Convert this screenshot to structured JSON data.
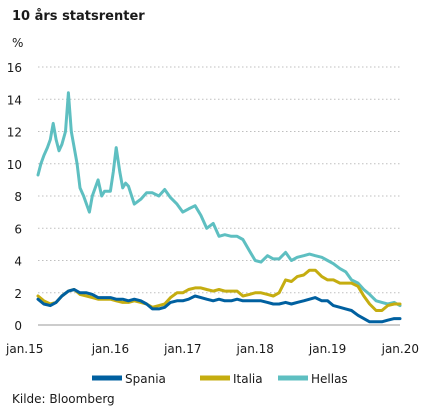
{
  "chart_data": {
    "type": "line",
    "title": "10 års statsrenter",
    "ylabel": "%",
    "source": "Kilde: Bloomberg",
    "ylim": [
      0,
      16
    ],
    "yticks": [
      0,
      2,
      4,
      6,
      8,
      10,
      12,
      14,
      16
    ],
    "xlim": [
      2015.0,
      2020.0
    ],
    "xticks": [
      {
        "value": 2015.0,
        "label": "jan.15"
      },
      {
        "value": 2016.0,
        "label": "jan.16"
      },
      {
        "value": 2017.0,
        "label": "jan.17"
      },
      {
        "value": 2018.0,
        "label": "jan.18"
      },
      {
        "value": 2019.0,
        "label": "jan.19"
      },
      {
        "value": 2020.0,
        "label": "jan.20"
      }
    ],
    "grid": "horizontal",
    "legend_position": "bottom",
    "series": [
      {
        "name": "Spania",
        "color": "#0060a0",
        "points": [
          [
            2015.0,
            1.6
          ],
          [
            2015.08,
            1.3
          ],
          [
            2015.17,
            1.2
          ],
          [
            2015.25,
            1.4
          ],
          [
            2015.33,
            1.8
          ],
          [
            2015.42,
            2.1
          ],
          [
            2015.5,
            2.2
          ],
          [
            2015.58,
            2.0
          ],
          [
            2015.67,
            2.0
          ],
          [
            2015.75,
            1.9
          ],
          [
            2015.83,
            1.7
          ],
          [
            2015.92,
            1.7
          ],
          [
            2016.0,
            1.7
          ],
          [
            2016.08,
            1.6
          ],
          [
            2016.17,
            1.6
          ],
          [
            2016.25,
            1.5
          ],
          [
            2016.33,
            1.6
          ],
          [
            2016.42,
            1.5
          ],
          [
            2016.5,
            1.3
          ],
          [
            2016.58,
            1.0
          ],
          [
            2016.67,
            1.0
          ],
          [
            2016.75,
            1.1
          ],
          [
            2016.83,
            1.4
          ],
          [
            2016.92,
            1.5
          ],
          [
            2017.0,
            1.5
          ],
          [
            2017.08,
            1.6
          ],
          [
            2017.17,
            1.8
          ],
          [
            2017.25,
            1.7
          ],
          [
            2017.33,
            1.6
          ],
          [
            2017.42,
            1.5
          ],
          [
            2017.5,
            1.6
          ],
          [
            2017.58,
            1.5
          ],
          [
            2017.67,
            1.5
          ],
          [
            2017.75,
            1.6
          ],
          [
            2017.83,
            1.5
          ],
          [
            2017.92,
            1.5
          ],
          [
            2018.0,
            1.5
          ],
          [
            2018.08,
            1.5
          ],
          [
            2018.17,
            1.4
          ],
          [
            2018.25,
            1.3
          ],
          [
            2018.33,
            1.3
          ],
          [
            2018.42,
            1.4
          ],
          [
            2018.5,
            1.3
          ],
          [
            2018.58,
            1.4
          ],
          [
            2018.67,
            1.5
          ],
          [
            2018.75,
            1.6
          ],
          [
            2018.83,
            1.7
          ],
          [
            2018.92,
            1.5
          ],
          [
            2019.0,
            1.5
          ],
          [
            2019.08,
            1.2
          ],
          [
            2019.17,
            1.1
          ],
          [
            2019.25,
            1.0
          ],
          [
            2019.33,
            0.9
          ],
          [
            2019.42,
            0.6
          ],
          [
            2019.5,
            0.4
          ],
          [
            2019.58,
            0.2
          ],
          [
            2019.67,
            0.2
          ],
          [
            2019.75,
            0.2
          ],
          [
            2019.83,
            0.3
          ],
          [
            2019.92,
            0.4
          ],
          [
            2020.0,
            0.4
          ]
        ]
      },
      {
        "name": "Italia",
        "color": "#c5ad10",
        "points": [
          [
            2015.0,
            1.8
          ],
          [
            2015.08,
            1.5
          ],
          [
            2015.17,
            1.3
          ],
          [
            2015.25,
            1.4
          ],
          [
            2015.33,
            1.8
          ],
          [
            2015.42,
            2.1
          ],
          [
            2015.5,
            2.2
          ],
          [
            2015.58,
            1.9
          ],
          [
            2015.67,
            1.8
          ],
          [
            2015.75,
            1.7
          ],
          [
            2015.83,
            1.6
          ],
          [
            2015.92,
            1.6
          ],
          [
            2016.0,
            1.6
          ],
          [
            2016.08,
            1.5
          ],
          [
            2016.17,
            1.4
          ],
          [
            2016.25,
            1.4
          ],
          [
            2016.33,
            1.5
          ],
          [
            2016.42,
            1.4
          ],
          [
            2016.5,
            1.3
          ],
          [
            2016.58,
            1.1
          ],
          [
            2016.67,
            1.2
          ],
          [
            2016.75,
            1.3
          ],
          [
            2016.83,
            1.7
          ],
          [
            2016.92,
            2.0
          ],
          [
            2017.0,
            2.0
          ],
          [
            2017.08,
            2.2
          ],
          [
            2017.17,
            2.3
          ],
          [
            2017.25,
            2.3
          ],
          [
            2017.33,
            2.2
          ],
          [
            2017.42,
            2.1
          ],
          [
            2017.5,
            2.2
          ],
          [
            2017.58,
            2.1
          ],
          [
            2017.67,
            2.1
          ],
          [
            2017.75,
            2.1
          ],
          [
            2017.83,
            1.8
          ],
          [
            2017.92,
            1.9
          ],
          [
            2018.0,
            2.0
          ],
          [
            2018.08,
            2.0
          ],
          [
            2018.17,
            1.9
          ],
          [
            2018.25,
            1.8
          ],
          [
            2018.33,
            2.0
          ],
          [
            2018.42,
            2.8
          ],
          [
            2018.5,
            2.7
          ],
          [
            2018.58,
            3.0
          ],
          [
            2018.67,
            3.1
          ],
          [
            2018.75,
            3.4
          ],
          [
            2018.83,
            3.4
          ],
          [
            2018.92,
            3.0
          ],
          [
            2019.0,
            2.8
          ],
          [
            2019.08,
            2.8
          ],
          [
            2019.17,
            2.6
          ],
          [
            2019.25,
            2.6
          ],
          [
            2019.33,
            2.6
          ],
          [
            2019.42,
            2.4
          ],
          [
            2019.5,
            1.8
          ],
          [
            2019.58,
            1.3
          ],
          [
            2019.67,
            0.9
          ],
          [
            2019.75,
            0.9
          ],
          [
            2019.83,
            1.2
          ],
          [
            2019.92,
            1.3
          ],
          [
            2020.0,
            1.3
          ]
        ]
      },
      {
        "name": "Hellas",
        "color": "#5ebfc1",
        "points": [
          [
            2015.0,
            9.3
          ],
          [
            2015.04,
            10.0
          ],
          [
            2015.08,
            10.5
          ],
          [
            2015.13,
            11.0
          ],
          [
            2015.17,
            11.5
          ],
          [
            2015.21,
            12.5
          ],
          [
            2015.25,
            11.5
          ],
          [
            2015.29,
            10.8
          ],
          [
            2015.33,
            11.2
          ],
          [
            2015.38,
            12.0
          ],
          [
            2015.42,
            14.4
          ],
          [
            2015.46,
            12.0
          ],
          [
            2015.5,
            11.0
          ],
          [
            2015.54,
            10.0
          ],
          [
            2015.58,
            8.5
          ],
          [
            2015.63,
            8.0
          ],
          [
            2015.67,
            7.5
          ],
          [
            2015.71,
            7.0
          ],
          [
            2015.75,
            8.0
          ],
          [
            2015.79,
            8.5
          ],
          [
            2015.83,
            9.0
          ],
          [
            2015.88,
            8.0
          ],
          [
            2015.92,
            8.3
          ],
          [
            2016.0,
            8.3
          ],
          [
            2016.04,
            9.5
          ],
          [
            2016.08,
            11.0
          ],
          [
            2016.13,
            9.5
          ],
          [
            2016.17,
            8.5
          ],
          [
            2016.21,
            8.8
          ],
          [
            2016.25,
            8.6
          ],
          [
            2016.33,
            7.5
          ],
          [
            2016.42,
            7.8
          ],
          [
            2016.5,
            8.2
          ],
          [
            2016.58,
            8.2
          ],
          [
            2016.67,
            8.0
          ],
          [
            2016.75,
            8.4
          ],
          [
            2016.83,
            7.9
          ],
          [
            2016.92,
            7.5
          ],
          [
            2017.0,
            7.0
          ],
          [
            2017.08,
            7.2
          ],
          [
            2017.17,
            7.4
          ],
          [
            2017.25,
            6.8
          ],
          [
            2017.33,
            6.0
          ],
          [
            2017.42,
            6.3
          ],
          [
            2017.5,
            5.5
          ],
          [
            2017.58,
            5.6
          ],
          [
            2017.67,
            5.5
          ],
          [
            2017.75,
            5.5
          ],
          [
            2017.83,
            5.3
          ],
          [
            2017.92,
            4.6
          ],
          [
            2018.0,
            4.0
          ],
          [
            2018.08,
            3.9
          ],
          [
            2018.17,
            4.3
          ],
          [
            2018.25,
            4.1
          ],
          [
            2018.33,
            4.1
          ],
          [
            2018.42,
            4.5
          ],
          [
            2018.5,
            4.0
          ],
          [
            2018.58,
            4.2
          ],
          [
            2018.67,
            4.3
          ],
          [
            2018.75,
            4.4
          ],
          [
            2018.83,
            4.3
          ],
          [
            2018.92,
            4.2
          ],
          [
            2019.0,
            4.0
          ],
          [
            2019.08,
            3.8
          ],
          [
            2019.17,
            3.5
          ],
          [
            2019.25,
            3.3
          ],
          [
            2019.33,
            2.8
          ],
          [
            2019.42,
            2.6
          ],
          [
            2019.5,
            2.2
          ],
          [
            2019.58,
            1.9
          ],
          [
            2019.67,
            1.5
          ],
          [
            2019.75,
            1.4
          ],
          [
            2019.83,
            1.3
          ],
          [
            2019.92,
            1.4
          ],
          [
            2020.0,
            1.2
          ]
        ]
      }
    ]
  }
}
